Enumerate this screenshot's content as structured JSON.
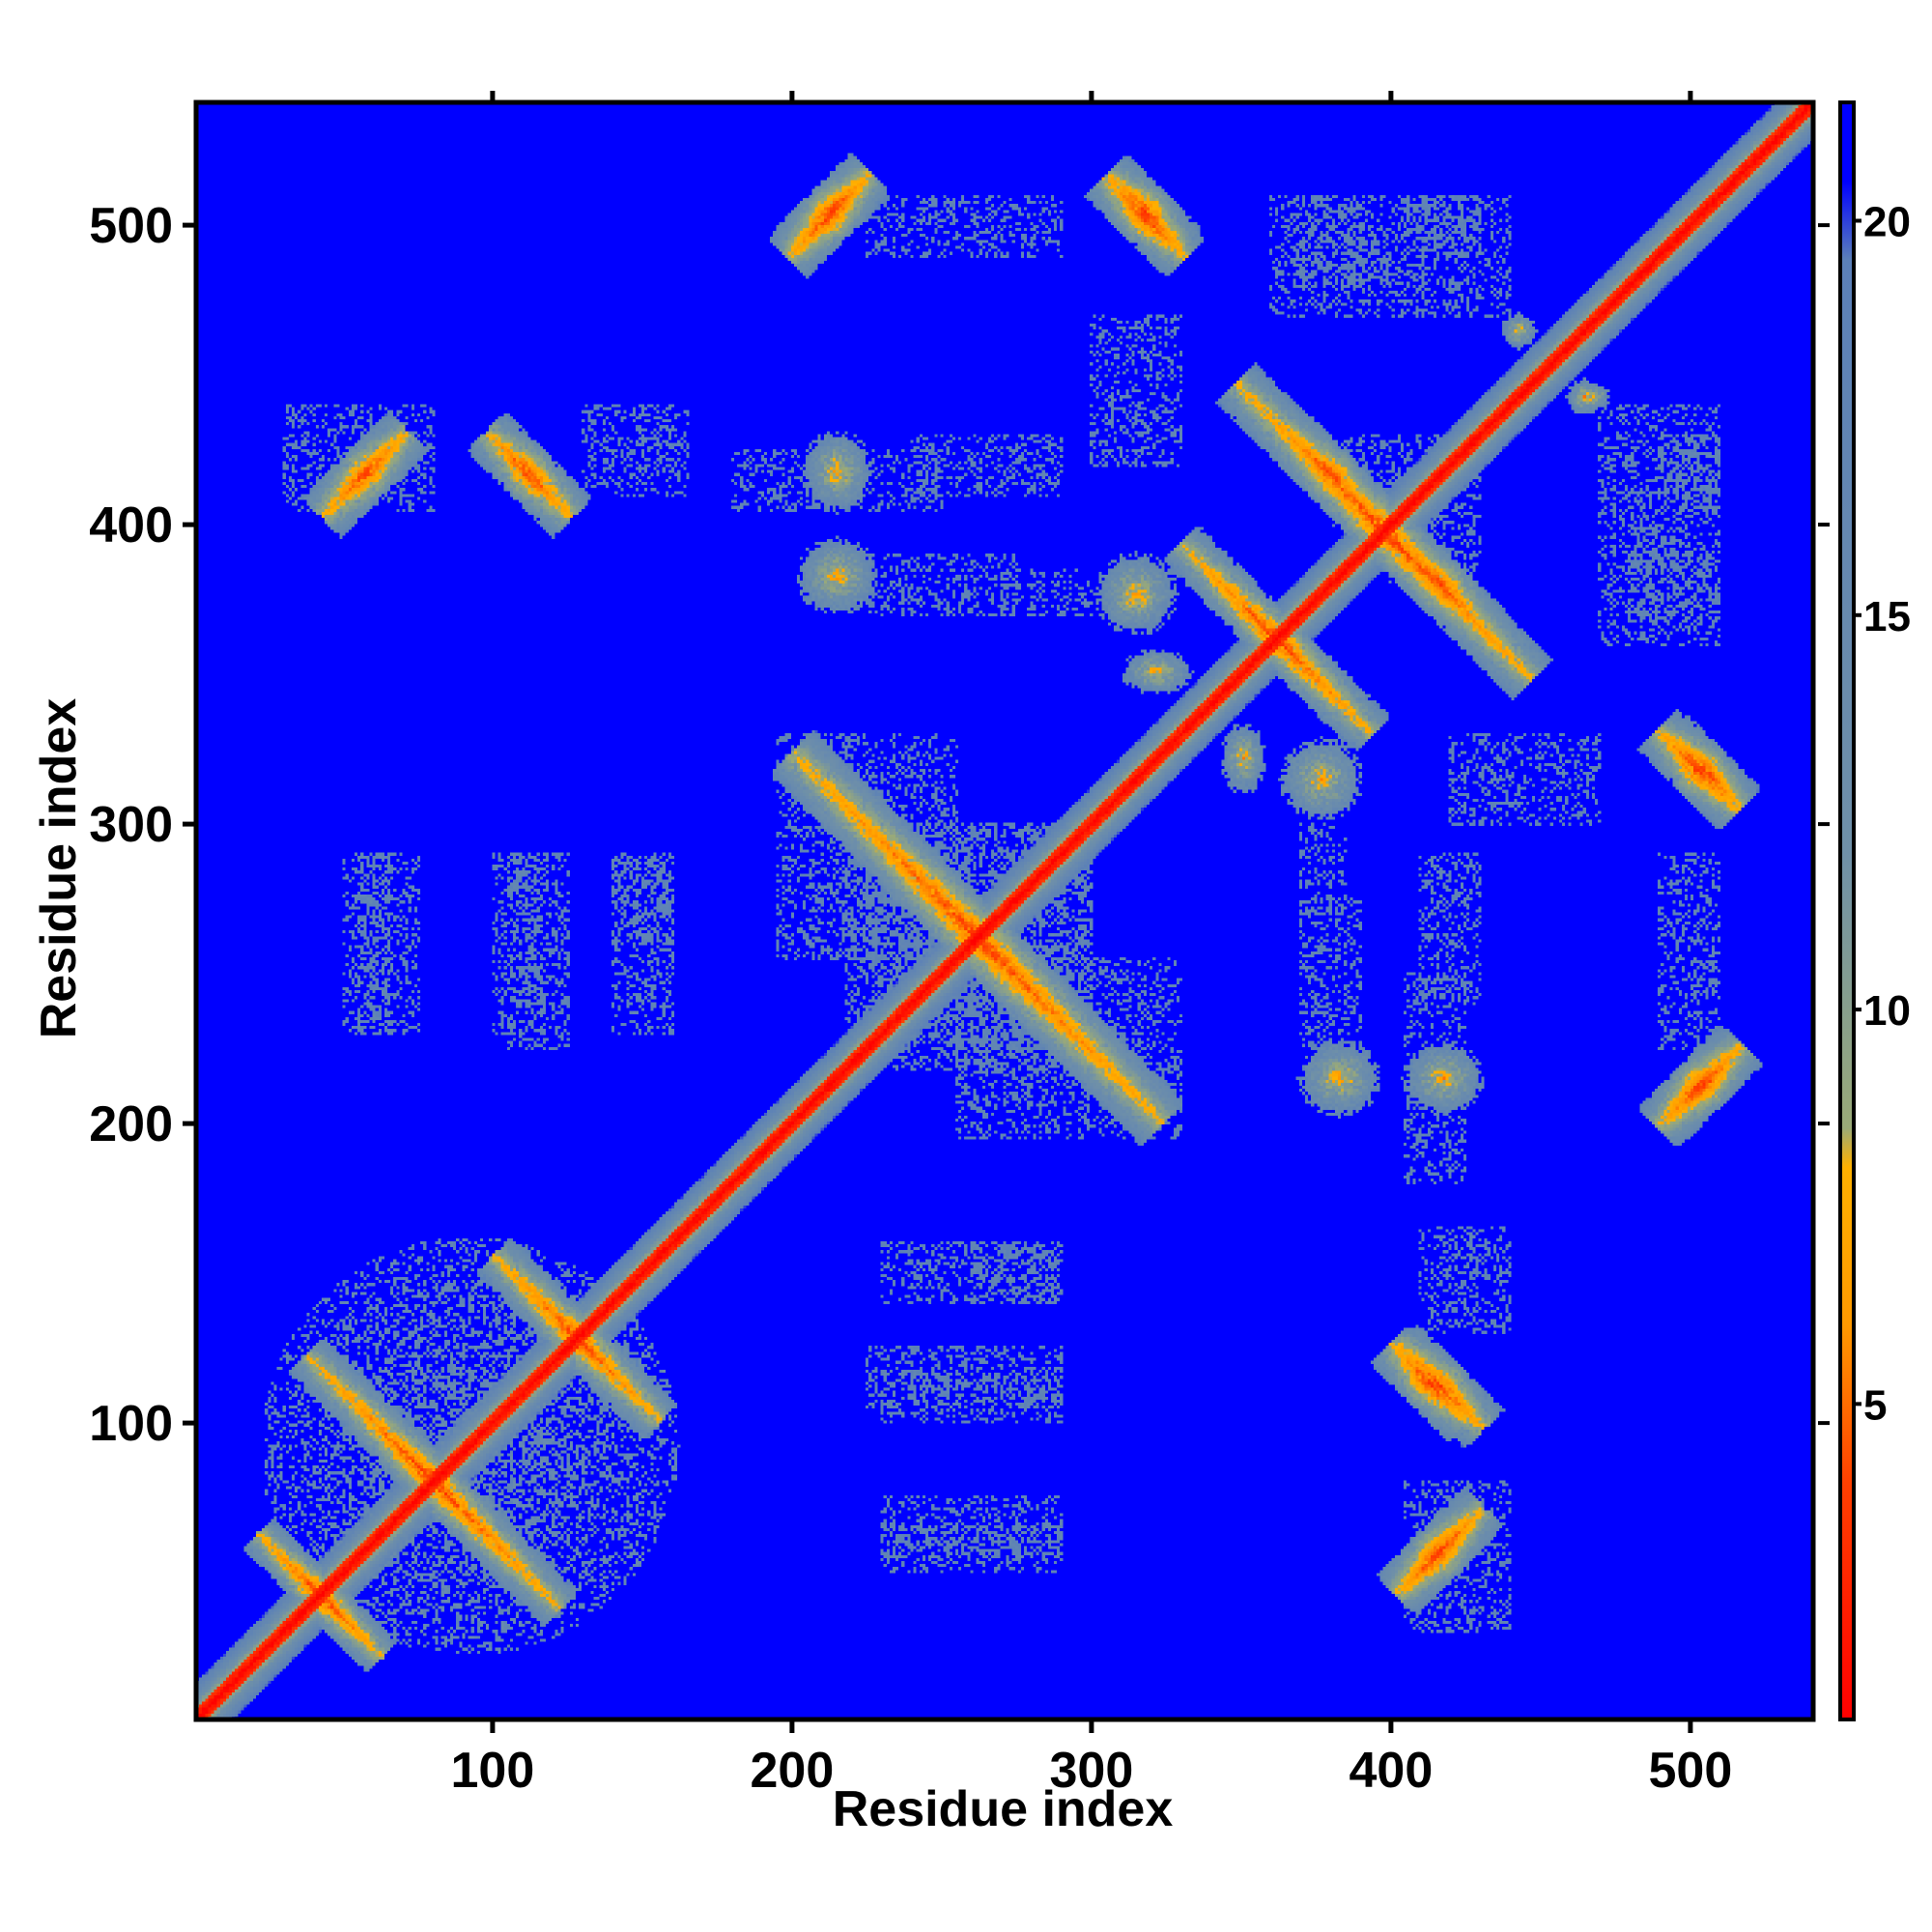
{
  "chart_data": {
    "type": "heatmap",
    "title": "",
    "xlabel": "Residue index",
    "ylabel": "Residue index",
    "xlim": [
      1,
      541
    ],
    "ylim": [
      1,
      541
    ],
    "x_ticks": [
      100,
      200,
      300,
      400,
      500
    ],
    "y_ticks": [
      100,
      200,
      300,
      400,
      500
    ],
    "colorbar": {
      "range": [
        1,
        21.5
      ],
      "ticks": [
        5,
        10,
        15,
        20
      ],
      "stops": [
        {
          "value": 1,
          "color": "#ff0000"
        },
        {
          "value": 4,
          "color": "#ff4000"
        },
        {
          "value": 6,
          "color": "#ff9900"
        },
        {
          "value": 8,
          "color": "#ffb000"
        },
        {
          "value": 8.5,
          "color": "#9aaa78"
        },
        {
          "value": 12,
          "color": "#6f90a8"
        },
        {
          "value": 19.5,
          "color": "#5b80b8"
        },
        {
          "value": 20.5,
          "color": "#0000ff"
        },
        {
          "value": 21.5,
          "color": "#0000ff"
        }
      ]
    },
    "background_value": 21,
    "diagonal": {
      "core_width": 3,
      "halo_width": 12
    },
    "contacts": [
      {
        "type": "anti",
        "x": 42,
        "y": 42,
        "len": 58,
        "wid": 7
      },
      {
        "type": "anti",
        "x": 80,
        "y": 80,
        "len": 120,
        "wid": 8
      },
      {
        "type": "anti",
        "x": 128,
        "y": 128,
        "len": 78,
        "wid": 8
      },
      {
        "type": "anti",
        "x": 262,
        "y": 262,
        "len": 175,
        "wid": 10
      },
      {
        "type": "anti",
        "x": 398,
        "y": 398,
        "len": 140,
        "wid": 9
      },
      {
        "type": "anti",
        "x": 362,
        "y": 362,
        "len": 90,
        "wid": 8
      },
      {
        "type": "cloud",
        "x": 92,
        "y": 92,
        "rx": 70,
        "ry": 70
      },
      {
        "type": "par",
        "x": 57,
        "y": 417,
        "len": 40,
        "wid": 9
      },
      {
        "type": "par",
        "x": 417,
        "y": 57,
        "len": 40,
        "wid": 9
      },
      {
        "type": "anti",
        "x": 112,
        "y": 417,
        "len": 40,
        "wid": 9
      },
      {
        "type": "anti",
        "x": 417,
        "y": 112,
        "len": 40,
        "wid": 9
      },
      {
        "type": "par",
        "x": 212,
        "y": 503,
        "len": 38,
        "wid": 9
      },
      {
        "type": "par",
        "x": 503,
        "y": 212,
        "len": 38,
        "wid": 9
      },
      {
        "type": "anti",
        "x": 318,
        "y": 503,
        "len": 38,
        "wid": 9
      },
      {
        "type": "anti",
        "x": 503,
        "y": 318,
        "len": 38,
        "wid": 9
      },
      {
        "type": "blob",
        "x": 215,
        "y": 383,
        "rx": 14,
        "ry": 13
      },
      {
        "type": "blob",
        "x": 383,
        "y": 215,
        "rx": 14,
        "ry": 13
      },
      {
        "type": "blob",
        "x": 315,
        "y": 377,
        "rx": 14,
        "ry": 14
      },
      {
        "type": "blob",
        "x": 377,
        "y": 315,
        "rx": 14,
        "ry": 14
      },
      {
        "type": "blob",
        "x": 322,
        "y": 351,
        "rx": 12,
        "ry": 8
      },
      {
        "type": "blob",
        "x": 351,
        "y": 322,
        "rx": 8,
        "ry": 12
      },
      {
        "type": "anti",
        "x": 380,
        "y": 417,
        "len": 40,
        "wid": 9
      },
      {
        "type": "anti",
        "x": 417,
        "y": 380,
        "len": 40,
        "wid": 9
      },
      {
        "type": "blob",
        "x": 215,
        "y": 418,
        "rx": 12,
        "ry": 14
      },
      {
        "type": "blob",
        "x": 418,
        "y": 215,
        "rx": 14,
        "ry": 12
      },
      {
        "type": "par",
        "x": 505,
        "y": 213,
        "len": 36,
        "wid": 9
      },
      {
        "type": "par",
        "x": 213,
        "y": 505,
        "len": 36,
        "wid": 9
      },
      {
        "type": "anti",
        "x": 505,
        "y": 318,
        "len": 34,
        "wid": 9
      },
      {
        "type": "anti",
        "x": 318,
        "y": 505,
        "len": 34,
        "wid": 9
      },
      {
        "type": "anti",
        "x": 413,
        "y": 113,
        "len": 36,
        "wid": 9
      },
      {
        "type": "par",
        "x": 415,
        "y": 55,
        "len": 36,
        "wid": 9
      },
      {
        "type": "blob",
        "x": 443,
        "y": 465,
        "rx": 6,
        "ry": 6
      },
      {
        "type": "blob",
        "x": 465,
        "y": 443,
        "rx": 6,
        "ry": 6
      },
      {
        "type": "blob",
        "x": 468,
        "y": 443,
        "rx": 6,
        "ry": 5
      },
      {
        "type": "blob",
        "x": 76,
        "y": 77,
        "rx": 8,
        "ry": 8
      }
    ],
    "noise_regions": [
      {
        "x0": 218,
        "x1": 300,
        "y0": 225,
        "y1": 300
      },
      {
        "x0": 255,
        "x1": 330,
        "y0": 195,
        "y1": 255
      },
      {
        "x0": 55,
        "x1": 75,
        "y0": 230,
        "y1": 290
      },
      {
        "x0": 105,
        "x1": 125,
        "y0": 225,
        "y1": 290
      },
      {
        "x0": 140,
        "x1": 160,
        "y0": 230,
        "y1": 290
      },
      {
        "x0": 230,
        "x1": 290,
        "y0": 50,
        "y1": 65
      },
      {
        "x0": 260,
        "x1": 290,
        "y0": 140,
        "y1": 160
      },
      {
        "x0": 230,
        "x1": 290,
        "y0": 100,
        "y1": 115
      },
      {
        "x0": 360,
        "x1": 440,
        "y0": 470,
        "y1": 510
      },
      {
        "x0": 380,
        "x1": 420,
        "y0": 400,
        "y1": 430
      },
      {
        "x0": 240,
        "x1": 290,
        "y0": 410,
        "y1": 430
      },
      {
        "x0": 270,
        "x1": 300,
        "y0": 370,
        "y1": 385
      },
      {
        "x0": 490,
        "x1": 510,
        "y0": 225,
        "y1": 290
      },
      {
        "x0": 480,
        "x1": 510,
        "y0": 370,
        "y1": 390
      },
      {
        "x0": 490,
        "x1": 510,
        "y0": 405,
        "y1": 430
      },
      {
        "x0": 420,
        "x1": 470,
        "y0": 300,
        "y1": 330
      },
      {
        "x0": 405,
        "x1": 425,
        "y0": 180,
        "y1": 250
      },
      {
        "x0": 370,
        "x1": 390,
        "y0": 225,
        "y1": 275
      },
      {
        "x0": 405,
        "x1": 440,
        "y0": 30,
        "y1": 80
      },
      {
        "x0": 410,
        "x1": 440,
        "y0": 130,
        "y1": 165
      },
      {
        "x0": 385,
        "x1": 400,
        "y0": 480,
        "y1": 500
      }
    ]
  }
}
